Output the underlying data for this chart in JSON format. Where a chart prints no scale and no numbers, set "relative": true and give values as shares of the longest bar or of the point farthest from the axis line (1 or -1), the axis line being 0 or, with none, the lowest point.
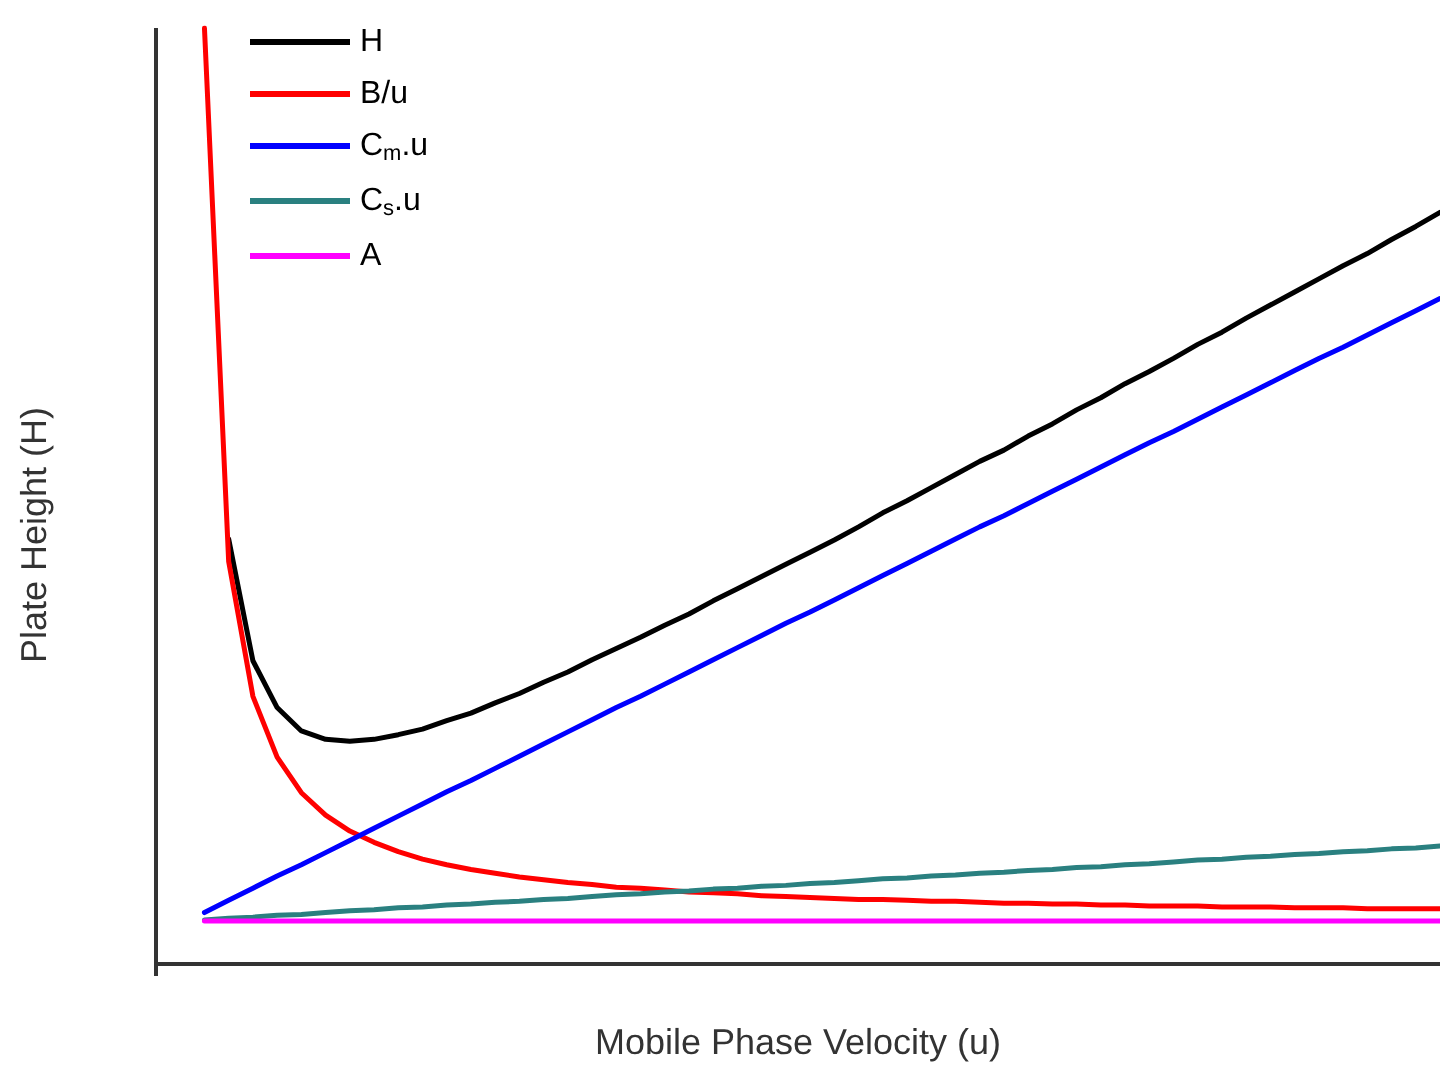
{
  "chart_data": {
    "type": "line",
    "relative": true,
    "xlabel": "Mobile Phase Velocity (u)",
    "ylabel": "Plate Height (H)",
    "legend": "top left",
    "grid": false,
    "marker": "none",
    "line_style": "solid",
    "tick_labels": false,
    "categories": [
      null,
      null,
      null,
      null,
      null,
      null,
      null,
      null,
      null,
      null,
      null,
      null,
      null,
      null,
      null,
      null,
      null,
      null,
      null,
      null,
      null,
      null,
      null,
      null,
      null,
      null,
      null,
      null,
      null,
      null,
      null,
      null,
      null,
      null,
      null,
      null,
      null,
      null,
      null,
      null,
      null,
      null,
      null,
      null,
      null,
      null,
      null,
      null,
      null,
      null,
      null,
      null,
      null,
      null
    ],
    "series": [
      {
        "name": "H",
        "color": "#000000",
        "values": [
          null,
          null,
          null,
          0.454,
          0.324,
          0.274,
          0.249,
          0.24,
          0.238,
          0.24,
          0.245,
          0.251,
          0.26,
          0.268,
          0.279,
          0.289,
          0.301,
          0.312,
          0.325,
          0.337,
          0.349,
          0.362,
          0.374,
          0.388,
          0.401,
          0.414,
          0.427,
          0.44,
          0.453,
          0.467,
          0.482,
          0.495,
          0.509,
          0.523,
          0.537,
          0.549,
          0.564,
          0.577,
          0.592,
          0.605,
          0.62,
          0.633,
          0.647,
          0.662,
          0.675,
          0.69,
          0.704,
          0.718,
          0.732,
          0.746,
          0.759,
          0.774,
          0.788,
          0.803
        ]
      },
      {
        "name": "B/u",
        "color": "#ff0000",
        "values": [
          null,
          null,
          1.0,
          0.43,
          0.286,
          0.221,
          0.183,
          0.159,
          0.142,
          0.13,
          0.12,
          0.112,
          0.106,
          0.101,
          0.097,
          0.093,
          0.09,
          0.087,
          0.085,
          0.082,
          0.081,
          0.079,
          0.077,
          0.076,
          0.075,
          0.073,
          0.072,
          0.071,
          0.07,
          0.069,
          0.069,
          0.068,
          0.067,
          0.067,
          0.066,
          0.065,
          0.065,
          0.064,
          0.064,
          0.063,
          0.063,
          0.062,
          0.062,
          0.062,
          0.061,
          0.061,
          0.061,
          0.06,
          0.06,
          0.06,
          0.059,
          0.059,
          0.059,
          0.059
        ]
      },
      {
        "name": "C$_{m}$.u",
        "color": "#0000ff",
        "values": [
          null,
          null,
          0.055,
          0.068,
          0.081,
          0.094,
          0.106,
          0.119,
          0.132,
          0.145,
          0.158,
          0.171,
          0.184,
          0.196,
          0.209,
          0.222,
          0.235,
          0.248,
          0.261,
          0.274,
          0.286,
          0.299,
          0.312,
          0.325,
          0.338,
          0.351,
          0.364,
          0.376,
          0.389,
          0.402,
          0.415,
          0.428,
          0.441,
          0.454,
          0.467,
          0.479,
          0.492,
          0.505,
          0.518,
          0.531,
          0.544,
          0.557,
          0.569,
          0.582,
          0.595,
          0.608,
          0.621,
          0.634,
          0.647,
          0.659,
          0.672,
          0.685,
          0.698,
          0.711
        ]
      },
      {
        "name": "C$_{s}$.u",
        "color": "#2a8080",
        "values": [
          null,
          null,
          0.047,
          0.049,
          0.05,
          0.052,
          0.053,
          0.055,
          0.057,
          0.058,
          0.06,
          0.061,
          0.063,
          0.064,
          0.066,
          0.067,
          0.069,
          0.07,
          0.072,
          0.074,
          0.075,
          0.077,
          0.078,
          0.08,
          0.081,
          0.083,
          0.084,
          0.086,
          0.087,
          0.089,
          0.091,
          0.092,
          0.094,
          0.095,
          0.097,
          0.098,
          0.1,
          0.101,
          0.103,
          0.104,
          0.106,
          0.107,
          0.109,
          0.111,
          0.112,
          0.114,
          0.115,
          0.117,
          0.118,
          0.12,
          0.121,
          0.123,
          0.124,
          0.126
        ]
      },
      {
        "name": "A",
        "color": "#ff00ff",
        "values": [
          null,
          null,
          0.046,
          0.046,
          0.046,
          0.046,
          0.046,
          0.046,
          0.046,
          0.046,
          0.046,
          0.046,
          0.046,
          0.046,
          0.046,
          0.046,
          0.046,
          0.046,
          0.046,
          0.046,
          0.046,
          0.046,
          0.046,
          0.046,
          0.046,
          0.046,
          0.046,
          0.046,
          0.046,
          0.046,
          0.046,
          0.046,
          0.046,
          0.046,
          0.046,
          0.046,
          0.046,
          0.046,
          0.046,
          0.046,
          0.046,
          0.046,
          0.046,
          0.046,
          0.046,
          0.046,
          0.046,
          0.046,
          0.046,
          0.046,
          0.046,
          0.046,
          0.046,
          0.046
        ]
      }
    ]
  }
}
